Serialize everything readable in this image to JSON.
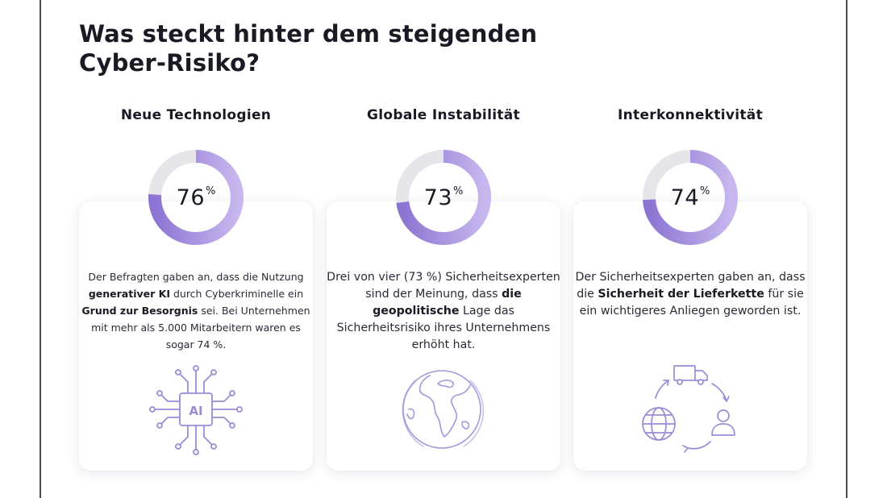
{
  "title": "Was steckt hinter dem steigenden Cyber-Risiko?",
  "colors": {
    "accent": "#8b74d2",
    "accent_light": "#c7b7ee",
    "ring_track": "#e6e6ea",
    "icon_stroke": "#9d8ad6"
  },
  "columns": [
    {
      "heading": "Neue Technologien",
      "percent_value": 76,
      "percent_number": "76",
      "percent_symbol": "%",
      "text": {
        "p1": "Der Befragten gaben an, dass die Nutzung ",
        "b1": "generativer KI",
        "p2": " durch Cyberkriminelle ein ",
        "b2": "Grund zur Besorgnis",
        "p3": " sei. Bei Unternehmen mit mehr als 5.000 Mitarbeitern waren es sogar 74 %."
      },
      "icon": "ai-chip-icon",
      "icon_label": "AI"
    },
    {
      "heading": "Globale Instabilität",
      "percent_value": 73,
      "percent_number": "73",
      "percent_symbol": "%",
      "text": {
        "p1": "Drei von vier (73 %) Sicherheitsexperten sind der Meinung, dass ",
        "b1": "die geopolitische",
        "p2": " Lage das Sicherheitsrisiko ihres Unternehmens erhöht hat."
      },
      "icon": "globe-icon"
    },
    {
      "heading": "Interkonnektivität",
      "percent_value": 74,
      "percent_number": "74",
      "percent_symbol": "%",
      "text": {
        "p1": "Der Sicherheitsexperten gaben an, dass die ",
        "b1": "Sicherheit der Lieferkette",
        "p2": " für sie ein wichtigeres Anliegen geworden ist."
      },
      "icon": "supply-chain-cycle-icon"
    }
  ]
}
